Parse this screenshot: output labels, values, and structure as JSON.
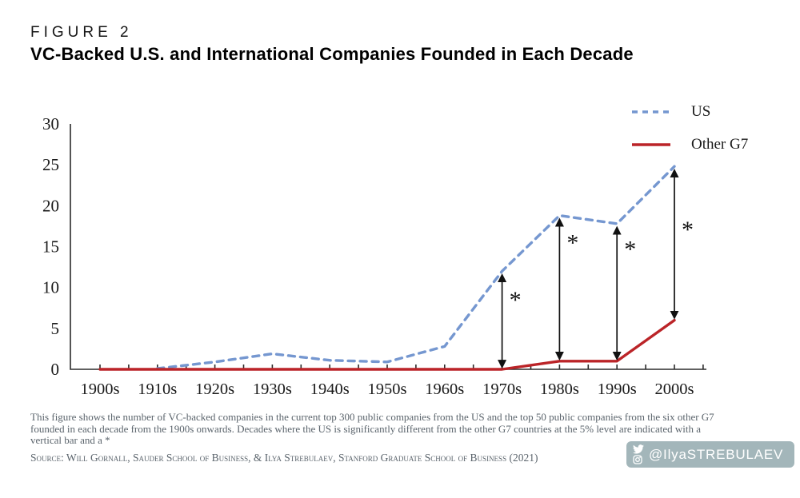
{
  "figure_label": "FIGURE 2",
  "title": "VC-Backed U.S. and International Companies Founded in Each Decade",
  "legend": {
    "items": [
      {
        "label": "US",
        "color": "#7597d0",
        "style": "dashed"
      },
      {
        "label": "Other G7",
        "color": "#bb2428",
        "style": "solid"
      }
    ]
  },
  "chart_data": {
    "type": "line",
    "title": "VC-Backed U.S. and International Companies Founded in Each Decade",
    "categories": [
      "1900s",
      "1910s",
      "1920s",
      "1930s",
      "1940s",
      "1950s",
      "1960s",
      "1970s",
      "1980s",
      "1990s",
      "2000s"
    ],
    "series": [
      {
        "name": "US",
        "color": "#7597d0",
        "dash": true,
        "values": [
          null,
          0.1,
          0.9,
          1.9,
          1.1,
          0.9,
          2.8,
          12,
          18.8,
          17.8,
          24.8
        ]
      },
      {
        "name": "Other G7",
        "color": "#bb2428",
        "dash": false,
        "values": [
          0,
          0,
          0,
          0,
          0,
          0,
          0,
          0,
          1,
          1,
          6
        ]
      }
    ],
    "xlabel": "",
    "ylabel": "",
    "ylim": [
      0,
      30
    ],
    "yticks": [
      0,
      5,
      10,
      15,
      20,
      25,
      30
    ],
    "grid": false,
    "legend_position": "top-right",
    "marker_symbol": "*",
    "significance_markers": [
      {
        "decade": "1970s",
        "from": 0,
        "to": 12,
        "asterisk_at": 9
      },
      {
        "decade": "1980s",
        "from": 1,
        "to": 18.8,
        "asterisk_at": 16
      },
      {
        "decade": "1990s",
        "from": 1,
        "to": 17.8,
        "asterisk_at": 15.2
      },
      {
        "decade": "2000s",
        "from": 6,
        "to": 24.8,
        "asterisk_at": 17.6
      }
    ]
  },
  "footnote": "This figure shows the number of VC-backed companies in the current top 300 public companies from the US and the top 50 public companies from the six other G7 founded in each decade from the 1900s onwards. Decades where the US is significantly different from the other G7 countries at the 5% level are indicated with a vertical bar and a *",
  "source": "Source: Will Gornall, Sauder School of Business, & Ilya Strebulaev, Stanford Graduate School of Business (2021)",
  "badge": {
    "handle": "@IlyaSTREBULAEV",
    "background": "#a3b6ba",
    "icons": [
      "twitter-icon",
      "instagram-icon"
    ]
  },
  "colors": {
    "axis": "#2b2b2b",
    "tick_text": "#1a1a1a",
    "annotation": "#111111",
    "footnote_text": "#5b646c"
  }
}
